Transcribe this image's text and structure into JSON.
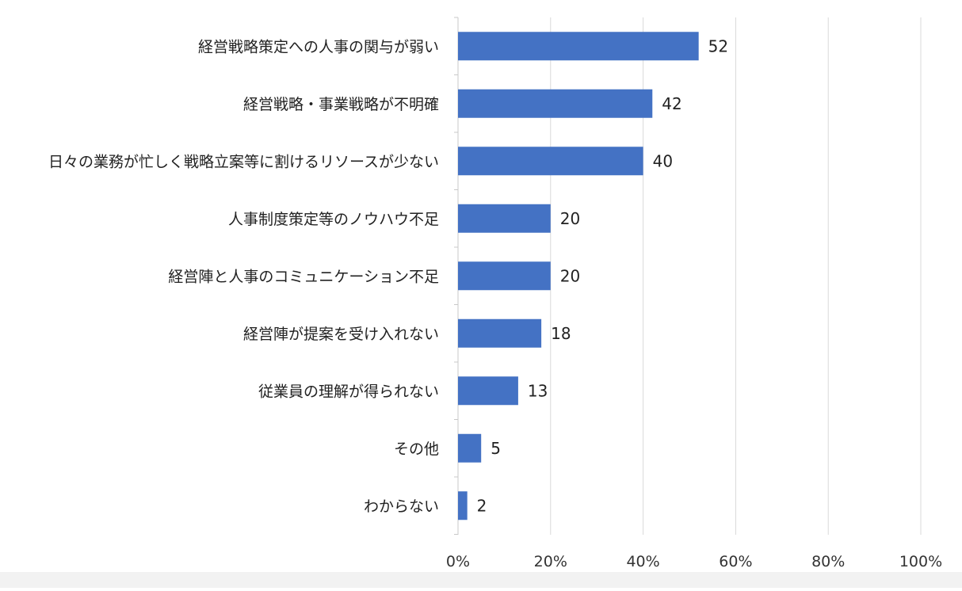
{
  "chart_data": {
    "type": "bar",
    "orientation": "horizontal",
    "categories": [
      "経営戦略策定への人事の関与が弱い",
      "経営戦略・事業戦略が不明確",
      "日々の業務が忙しく戦略立案等に割けるリソースが少ない",
      "人事制度策定等のノウハウ不足",
      "経営陣と人事のコミュニケーション不足",
      "経営陣が提案を受け入れない",
      "従業員の理解が得られない",
      "その他",
      "わからない"
    ],
    "values": [
      52,
      42,
      40,
      20,
      20,
      18,
      13,
      5,
      2
    ],
    "value_labels": [
      "52",
      "42",
      "40",
      "20",
      "20",
      "18",
      "13",
      "5",
      "2"
    ],
    "xlim": [
      0,
      100
    ],
    "x_ticks": [
      "0%",
      "20%",
      "40%",
      "60%",
      "80%",
      "100%"
    ],
    "grid": true,
    "bar_color": "#4472c4",
    "gridline_color": "#d9d9d9"
  }
}
